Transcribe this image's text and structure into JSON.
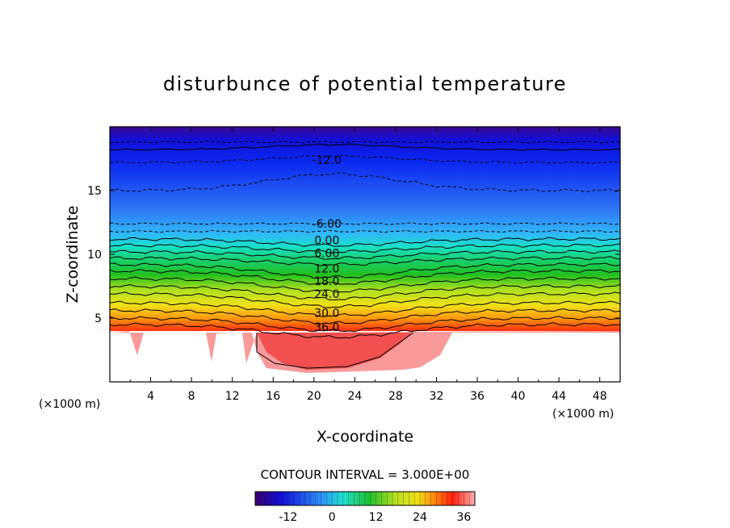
{
  "chart_data": {
    "type": "heatmap",
    "title": "disturbunce of potential temperature",
    "xlabel": "X-coordinate",
    "ylabel": "Z-coordinate",
    "x_unit_left": "(×1000 m)",
    "x_unit_right": "(×1000 m)",
    "xlim": [
      0,
      50
    ],
    "ylim": [
      0,
      20
    ],
    "x_ticks": [
      "4",
      "8",
      "12",
      "16",
      "20",
      "24",
      "28",
      "32",
      "36",
      "40",
      "44",
      "48"
    ],
    "y_ticks": [
      "5",
      "10",
      "15"
    ],
    "contour_interval_text": "CONTOUR INTERVAL = 3.000E+00",
    "contour_interval": 3,
    "value_range": [
      -21,
      39
    ],
    "colorbar_ticks": [
      "-12",
      "0",
      "12",
      "24",
      "36"
    ],
    "contour_labels": [
      {
        "text": "-12.0",
        "x": 20,
        "z": 17.4
      },
      {
        "text": "-6.00",
        "x": 20,
        "z": 12.4
      },
      {
        "text": "0.00",
        "x": 20,
        "z": 11.1
      },
      {
        "text": "6.00",
        "x": 20,
        "z": 10.1
      },
      {
        "text": "12.0",
        "x": 20,
        "z": 8.9
      },
      {
        "text": "18.0",
        "x": 20,
        "z": 7.9
      },
      {
        "text": "24.0",
        "x": 20,
        "z": 6.9
      },
      {
        "text": "30.0",
        "x": 20,
        "z": 5.4
      },
      {
        "text": "36.0",
        "x": 20,
        "z": 4.3
      }
    ],
    "colors": {
      "very_low": "#3a0070",
      "low": "#1030e0",
      "neutral": "#20d0e0",
      "mid": "#20c040",
      "warm": "#f0e020",
      "hot": "#f02010",
      "very_hot": "#ffaaaa"
    }
  }
}
